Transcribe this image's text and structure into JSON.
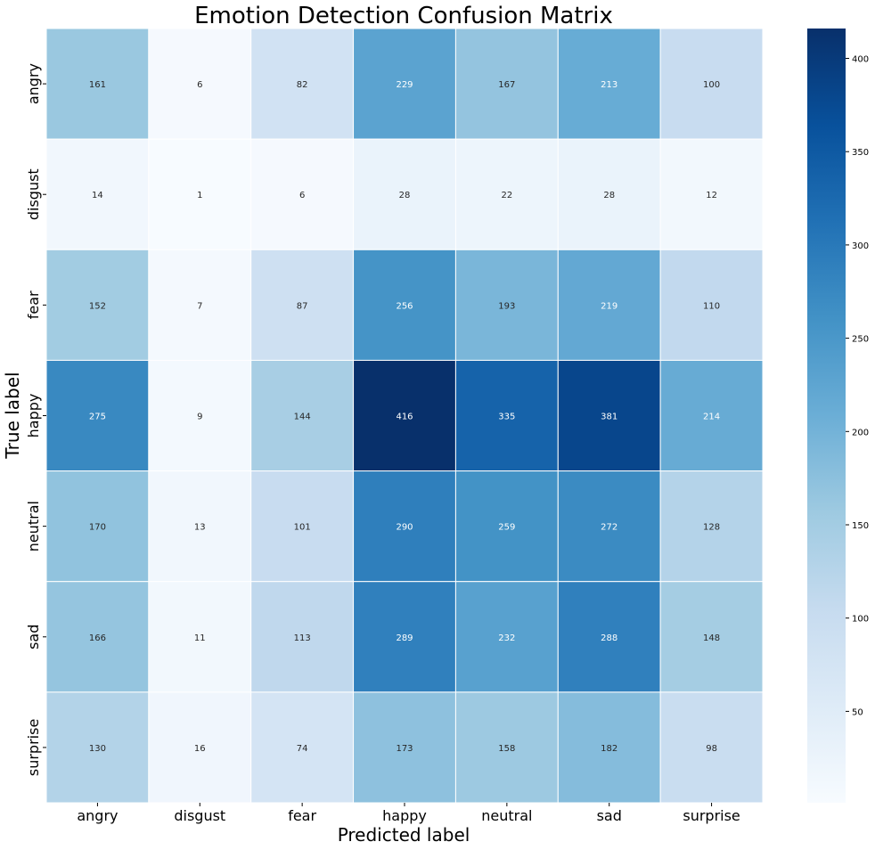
{
  "chart_data": {
    "type": "heatmap",
    "title": "Emotion Detection Confusion Matrix",
    "xlabel": "Predicted label",
    "ylabel": "True label",
    "x_categories": [
      "angry",
      "disgust",
      "fear",
      "happy",
      "neutral",
      "sad",
      "surprise"
    ],
    "y_categories": [
      "angry",
      "disgust",
      "fear",
      "happy",
      "neutral",
      "sad",
      "surprise"
    ],
    "values": [
      [
        161,
        6,
        82,
        229,
        167,
        213,
        100
      ],
      [
        14,
        1,
        6,
        28,
        22,
        28,
        12
      ],
      [
        152,
        7,
        87,
        256,
        193,
        219,
        110
      ],
      [
        275,
        9,
        144,
        416,
        335,
        381,
        214
      ],
      [
        170,
        13,
        101,
        290,
        259,
        272,
        128
      ],
      [
        166,
        11,
        113,
        289,
        232,
        288,
        148
      ],
      [
        130,
        16,
        74,
        173,
        158,
        182,
        98
      ]
    ],
    "colorbar": {
      "min": 1,
      "max": 416,
      "ticks": [
        50,
        100,
        150,
        200,
        250,
        300,
        350,
        400
      ],
      "colormap": "Blues"
    }
  }
}
